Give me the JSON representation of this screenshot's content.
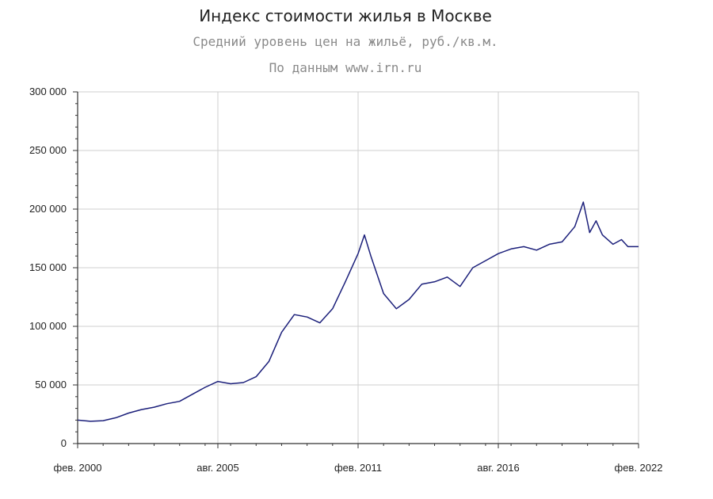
{
  "header": {
    "title": "Индекс стоимости жилья в Москве",
    "subtitle": "Средний уровень цен на жильё, руб./кв.м.",
    "source": "По данным www.irn.ru"
  },
  "colors": {
    "line": "#1b1f7a",
    "grid": "#cfcfcf",
    "axis": "#333333"
  },
  "chart_data": {
    "type": "line",
    "title": "Индекс стоимости жилья в Москве",
    "subtitle": "Средний уровень цен на жильё, руб./кв.м.",
    "xlabel": "",
    "ylabel": "",
    "xlim": [
      "2000-02",
      "2022-02"
    ],
    "ylim": [
      0,
      300000
    ],
    "grid": true,
    "x_ticks": [
      {
        "date": "2000-02",
        "label": "фев. 2000"
      },
      {
        "date": "2005-08",
        "label": "авг. 2005"
      },
      {
        "date": "2011-02",
        "label": "фев. 2011"
      },
      {
        "date": "2016-08",
        "label": "авг. 2016"
      },
      {
        "date": "2022-02",
        "label": "фев. 2022"
      }
    ],
    "y_ticks": [
      {
        "value": 0,
        "label": "0"
      },
      {
        "value": 50000,
        "label": "50 000"
      },
      {
        "value": 100000,
        "label": "100 000"
      },
      {
        "value": 150000,
        "label": "150 000"
      },
      {
        "value": 200000,
        "label": "200 000"
      },
      {
        "value": 250000,
        "label": "250 000"
      },
      {
        "value": 300000,
        "label": "300 000"
      }
    ],
    "series": [
      {
        "points": [
          [
            "2000-02",
            20000
          ],
          [
            "2000-08",
            19000
          ],
          [
            "2001-02",
            19500
          ],
          [
            "2001-08",
            22000
          ],
          [
            "2002-02",
            26000
          ],
          [
            "2002-08",
            29000
          ],
          [
            "2003-02",
            31000
          ],
          [
            "2003-08",
            34000
          ],
          [
            "2004-02",
            36000
          ],
          [
            "2004-08",
            42000
          ],
          [
            "2005-02",
            48000
          ],
          [
            "2005-08",
            53000
          ],
          [
            "2006-02",
            51000
          ],
          [
            "2006-08",
            52000
          ],
          [
            "2007-02",
            57000
          ],
          [
            "2007-08",
            70000
          ],
          [
            "2008-02",
            95000
          ],
          [
            "2008-08",
            110000
          ],
          [
            "2009-02",
            108000
          ],
          [
            "2009-08",
            103000
          ],
          [
            "2010-02",
            115000
          ],
          [
            "2010-08",
            138000
          ],
          [
            "2011-02",
            162000
          ],
          [
            "2011-05",
            178000
          ],
          [
            "2011-08",
            160000
          ],
          [
            "2012-02",
            128000
          ],
          [
            "2012-08",
            115000
          ],
          [
            "2013-02",
            123000
          ],
          [
            "2013-08",
            136000
          ],
          [
            "2014-02",
            138000
          ],
          [
            "2014-08",
            142000
          ],
          [
            "2015-02",
            134000
          ],
          [
            "2015-08",
            150000
          ],
          [
            "2016-02",
            156000
          ],
          [
            "2016-08",
            162000
          ],
          [
            "2017-02",
            166000
          ],
          [
            "2017-08",
            168000
          ],
          [
            "2018-02",
            165000
          ],
          [
            "2018-08",
            170000
          ],
          [
            "2019-02",
            172000
          ],
          [
            "2019-08",
            185000
          ],
          [
            "2019-12",
            206000
          ],
          [
            "2020-03",
            180000
          ],
          [
            "2020-06",
            190000
          ],
          [
            "2020-09",
            178000
          ],
          [
            "2021-02",
            170000
          ],
          [
            "2021-06",
            174000
          ],
          [
            "2021-09",
            168000
          ],
          [
            "2022-02",
            168000
          ]
        ]
      }
    ]
  }
}
